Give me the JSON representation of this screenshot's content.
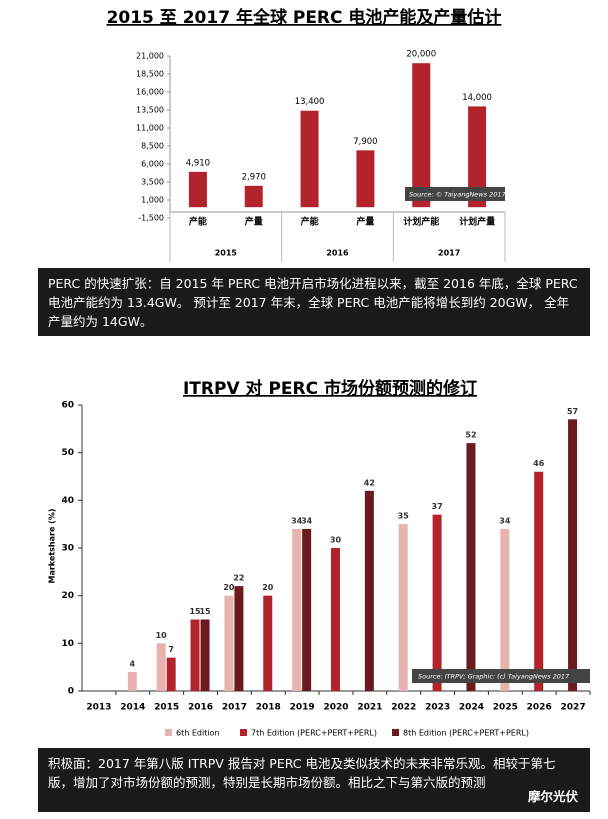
{
  "chart_data": [
    {
      "type": "bar",
      "title": "2015 至 2017 年全球 PERC 电池产能及产量估计",
      "categories": [
        "产能",
        "产量",
        "产能",
        "产量",
        "计划产能",
        "计划产量"
      ],
      "groups": [
        "2015",
        "2016",
        "2017"
      ],
      "values": [
        4910,
        2970,
        13400,
        7900,
        20000,
        14000
      ],
      "value_labels": [
        "4,910",
        "2,970",
        "13,400",
        "7,900",
        "20,000",
        "14,000"
      ],
      "color": "#b3232c",
      "ylim": [
        -1500,
        21000
      ],
      "yticks": [
        {
          "value": -1500,
          "label": "-1,500"
        },
        {
          "value": 1000,
          "label": "1,000"
        },
        {
          "value": 3500,
          "label": "3,500"
        },
        {
          "value": 6000,
          "label": "6,000"
        },
        {
          "value": 8500,
          "label": "8,500"
        },
        {
          "value": 11000,
          "label": "11,000"
        },
        {
          "value": 13500,
          "label": "13,500"
        },
        {
          "value": 16000,
          "label": "16,000"
        },
        {
          "value": 18500,
          "label": "18,500"
        },
        {
          "value": 21000,
          "label": "21,000"
        }
      ],
      "source": "Source: © TaiyangNews 2017",
      "caption": "PERC 的快速扩张：自 2015 年 PERC 电池开启市场化进程以来，截至 2016 年底，全球 PERC 电池产能约为 13.4GW。 预计至 2017 年末，全球 PERC 电池产能将增长到约 20GW， 全年产量约为 14GW。"
    },
    {
      "type": "grouped-bar",
      "title": "ITRPV 对 PERC 市场份额预测的修订",
      "y_label": "Marketshare (%)",
      "categories": [
        "2013",
        "2014",
        "2015",
        "2016",
        "2017",
        "2018",
        "2019",
        "2020",
        "2021",
        "2022",
        "2023",
        "2024",
        "2025",
        "2026",
        "2027"
      ],
      "series": [
        {
          "name": "6th Edition",
          "color": "#e6b3ae",
          "values": [
            null,
            4,
            10,
            null,
            20,
            null,
            34,
            null,
            null,
            35,
            null,
            null,
            34,
            null,
            null
          ]
        },
        {
          "name": "7th Edition (PERC+PERT+PERL)",
          "color": "#b3232c",
          "values": [
            null,
            null,
            7,
            15,
            null,
            20,
            null,
            30,
            null,
            null,
            37,
            null,
            null,
            46,
            null
          ]
        },
        {
          "name": "8th Edition (PERC+PERT+PERL)",
          "color": "#6b1a20",
          "values": [
            null,
            null,
            null,
            15,
            22,
            null,
            34,
            null,
            42,
            null,
            null,
            52,
            null,
            null,
            57
          ]
        }
      ],
      "ylim": [
        0,
        60
      ],
      "yticks": [
        0,
        10,
        20,
        30,
        40,
        50,
        60
      ],
      "source": "Source: ITRPV; Graphic: (c) TaiyangNews 2017",
      "caption": "积极面：2017 年第八版 ITRPV 报告对 PERC 电池及类似技术的未来非常乐观。相较于第七版，增加了对市场份额的预测，特别是长期市场份额。相比之下与第六版的预测",
      "watermark": "摩尔光伏"
    }
  ]
}
